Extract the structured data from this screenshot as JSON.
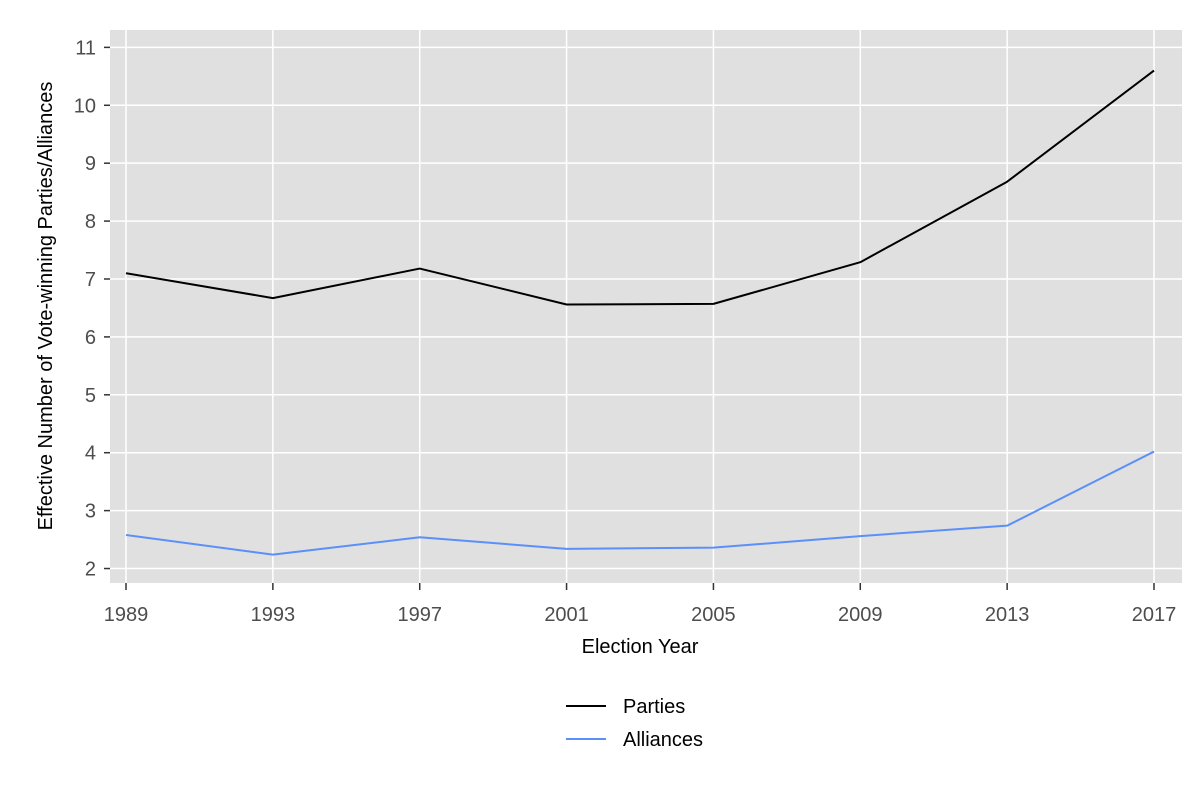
{
  "chart_data": {
    "type": "line",
    "title": "",
    "xlabel": "Election Year",
    "ylabel": "Effective Number of Vote-winning Parties/Alliances",
    "x": [
      1989,
      1993,
      1997,
      2001,
      2005,
      2009,
      2013,
      2017
    ],
    "xlim": [
      1989,
      2017
    ],
    "ylim": [
      1.75,
      11.3
    ],
    "yticks": [
      2,
      3,
      4,
      5,
      6,
      7,
      8,
      9,
      10,
      11
    ],
    "grid": true,
    "legend_position": "bottom",
    "series": [
      {
        "name": "Parties",
        "color": "#000000",
        "values": [
          7.1,
          6.67,
          7.18,
          6.56,
          6.57,
          7.29,
          8.68,
          10.6
        ]
      },
      {
        "name": "Alliances",
        "color": "#5b8ff9",
        "values": [
          2.58,
          2.24,
          2.54,
          2.34,
          2.36,
          2.56,
          2.74,
          4.02
        ]
      }
    ]
  },
  "colors": {
    "panel_background": "#e0e0e0",
    "grid_line": "#ffffff",
    "tick_label": "#4d4d4d"
  }
}
